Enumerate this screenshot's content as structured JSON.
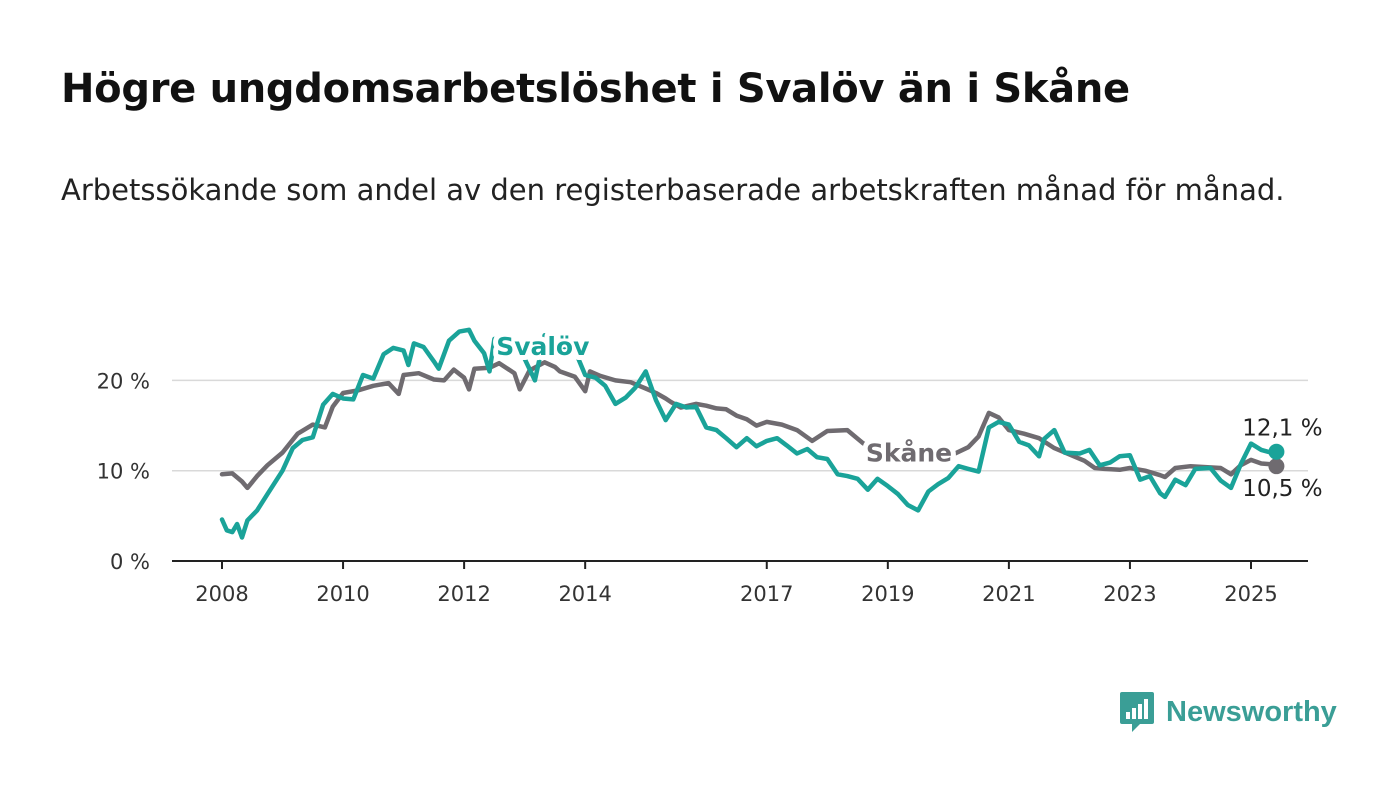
{
  "header": {
    "title": "Högre ungdomsarbetslöshet i Svalöv än i Skåne",
    "subtitle": "Arbetssökande som andel av den registerbaserade arbetskraften månad för månad."
  },
  "brand": {
    "name": "Newsworthy",
    "logo_icon": "bar-chart-speech-bubble-icon",
    "color": "#3a9e96"
  },
  "chart_data": {
    "type": "line",
    "x_tick_labels": [
      "2008",
      "2010",
      "2012",
      "2014",
      "2017",
      "2019",
      "2021",
      "2023",
      "2025"
    ],
    "y_tick_labels": [
      "0 %",
      "10 %",
      "20 %"
    ],
    "y_ticks": [
      0,
      10,
      20
    ],
    "ylim": [
      0,
      28
    ],
    "xlim": [
      2007.2,
      2026
    ],
    "grid": true,
    "series": [
      {
        "name": "Skåne",
        "color": "#6f6b70",
        "end_label": "10,5 %",
        "points": [
          [
            2008.0,
            9.6
          ],
          [
            2008.17,
            9.7
          ],
          [
            2008.33,
            8.8
          ],
          [
            2008.42,
            8.1
          ],
          [
            2008.58,
            9.4
          ],
          [
            2008.75,
            10.6
          ],
          [
            2009.0,
            12.0
          ],
          [
            2009.25,
            14.1
          ],
          [
            2009.5,
            15.1
          ],
          [
            2009.7,
            14.8
          ],
          [
            2009.83,
            17.1
          ],
          [
            2010.0,
            18.6
          ],
          [
            2010.25,
            18.9
          ],
          [
            2010.5,
            19.4
          ],
          [
            2010.75,
            19.7
          ],
          [
            2010.92,
            18.5
          ],
          [
            2011.0,
            20.6
          ],
          [
            2011.25,
            20.8
          ],
          [
            2011.5,
            20.1
          ],
          [
            2011.67,
            20.0
          ],
          [
            2011.83,
            21.2
          ],
          [
            2012.0,
            20.3
          ],
          [
            2012.08,
            19.0
          ],
          [
            2012.17,
            21.3
          ],
          [
            2012.42,
            21.4
          ],
          [
            2012.58,
            21.9
          ],
          [
            2012.83,
            20.8
          ],
          [
            2012.92,
            19.0
          ],
          [
            2013.08,
            21.1
          ],
          [
            2013.33,
            22.0
          ],
          [
            2013.5,
            21.5
          ],
          [
            2013.58,
            21.0
          ],
          [
            2013.83,
            20.4
          ],
          [
            2014.0,
            18.8
          ],
          [
            2014.08,
            21.0
          ],
          [
            2014.25,
            20.5
          ],
          [
            2014.5,
            20.0
          ],
          [
            2014.75,
            19.8
          ],
          [
            2015.0,
            19.1
          ],
          [
            2015.17,
            18.6
          ],
          [
            2015.33,
            18.0
          ],
          [
            2015.42,
            17.6
          ],
          [
            2015.58,
            17.0
          ],
          [
            2015.83,
            17.4
          ],
          [
            2016.0,
            17.2
          ],
          [
            2016.17,
            16.9
          ],
          [
            2016.33,
            16.8
          ],
          [
            2016.5,
            16.1
          ],
          [
            2016.67,
            15.7
          ],
          [
            2016.83,
            15.0
          ],
          [
            2017.0,
            15.4
          ],
          [
            2017.25,
            15.1
          ],
          [
            2017.5,
            14.5
          ],
          [
            2017.75,
            13.3
          ],
          [
            2018.0,
            14.4
          ],
          [
            2018.33,
            14.5
          ],
          [
            2018.58,
            13.1
          ],
          [
            2018.83,
            12.0
          ],
          [
            2018.92,
            11.3
          ],
          [
            2019.17,
            12.8
          ],
          [
            2019.5,
            12.7
          ],
          [
            2019.83,
            12.5
          ],
          [
            2020.08,
            11.8
          ],
          [
            2020.33,
            12.6
          ],
          [
            2020.5,
            13.8
          ],
          [
            2020.67,
            16.4
          ],
          [
            2020.83,
            15.9
          ],
          [
            2021.0,
            14.5
          ],
          [
            2021.25,
            14.1
          ],
          [
            2021.5,
            13.6
          ],
          [
            2021.75,
            12.5
          ],
          [
            2022.0,
            11.8
          ],
          [
            2022.25,
            11.1
          ],
          [
            2022.42,
            10.3
          ],
          [
            2022.58,
            10.2
          ],
          [
            2022.83,
            10.1
          ],
          [
            2023.0,
            10.3
          ],
          [
            2023.25,
            10.0
          ],
          [
            2023.5,
            9.5
          ],
          [
            2023.58,
            9.3
          ],
          [
            2023.75,
            10.3
          ],
          [
            2024.0,
            10.5
          ],
          [
            2024.25,
            10.4
          ],
          [
            2024.5,
            10.3
          ],
          [
            2024.67,
            9.6
          ],
          [
            2024.83,
            10.6
          ],
          [
            2025.0,
            11.2
          ],
          [
            2025.17,
            10.8
          ],
          [
            2025.35,
            10.7
          ],
          [
            2025.42,
            10.5
          ]
        ]
      },
      {
        "name": "Svalöv",
        "color": "#1aa399",
        "end_label": "12,1 %",
        "points": [
          [
            2008.0,
            4.6
          ],
          [
            2008.08,
            3.4
          ],
          [
            2008.17,
            3.2
          ],
          [
            2008.25,
            4.1
          ],
          [
            2008.33,
            2.6
          ],
          [
            2008.42,
            4.5
          ],
          [
            2008.58,
            5.6
          ],
          [
            2008.75,
            7.4
          ],
          [
            2009.0,
            10.0
          ],
          [
            2009.17,
            12.5
          ],
          [
            2009.33,
            13.4
          ],
          [
            2009.5,
            13.7
          ],
          [
            2009.67,
            17.3
          ],
          [
            2009.83,
            18.5
          ],
          [
            2010.0,
            18.0
          ],
          [
            2010.17,
            17.9
          ],
          [
            2010.33,
            20.6
          ],
          [
            2010.5,
            20.2
          ],
          [
            2010.67,
            22.9
          ],
          [
            2010.83,
            23.6
          ],
          [
            2011.0,
            23.3
          ],
          [
            2011.08,
            21.7
          ],
          [
            2011.17,
            24.1
          ],
          [
            2011.33,
            23.7
          ],
          [
            2011.5,
            22.1
          ],
          [
            2011.58,
            21.3
          ],
          [
            2011.75,
            24.4
          ],
          [
            2011.92,
            25.4
          ],
          [
            2012.08,
            25.6
          ],
          [
            2012.17,
            24.4
          ],
          [
            2012.33,
            23.0
          ],
          [
            2012.42,
            21.0
          ],
          [
            2012.5,
            24.6
          ],
          [
            2012.67,
            23.4
          ],
          [
            2012.83,
            23.4
          ],
          [
            2013.0,
            22.4
          ],
          [
            2013.17,
            20.0
          ],
          [
            2013.33,
            25.0
          ],
          [
            2013.5,
            23.0
          ],
          [
            2013.58,
            22.6
          ],
          [
            2013.75,
            24.6
          ],
          [
            2014.0,
            20.6
          ],
          [
            2014.17,
            20.3
          ],
          [
            2014.33,
            19.4
          ],
          [
            2014.5,
            17.4
          ],
          [
            2014.67,
            18.1
          ],
          [
            2014.83,
            19.2
          ],
          [
            2015.0,
            21.0
          ],
          [
            2015.17,
            17.8
          ],
          [
            2015.33,
            15.6
          ],
          [
            2015.5,
            17.4
          ],
          [
            2015.67,
            17.0
          ],
          [
            2015.83,
            17.1
          ],
          [
            2016.0,
            14.8
          ],
          [
            2016.17,
            14.5
          ],
          [
            2016.33,
            13.6
          ],
          [
            2016.5,
            12.6
          ],
          [
            2016.67,
            13.6
          ],
          [
            2016.83,
            12.7
          ],
          [
            2017.0,
            13.3
          ],
          [
            2017.17,
            13.6
          ],
          [
            2017.33,
            12.8
          ],
          [
            2017.5,
            11.9
          ],
          [
            2017.67,
            12.4
          ],
          [
            2017.83,
            11.5
          ],
          [
            2018.0,
            11.3
          ],
          [
            2018.17,
            9.6
          ],
          [
            2018.33,
            9.4
          ],
          [
            2018.5,
            9.1
          ],
          [
            2018.67,
            7.9
          ],
          [
            2018.83,
            9.1
          ],
          [
            2019.0,
            8.3
          ],
          [
            2019.17,
            7.4
          ],
          [
            2019.33,
            6.2
          ],
          [
            2019.5,
            5.6
          ],
          [
            2019.67,
            7.7
          ],
          [
            2019.83,
            8.5
          ],
          [
            2020.0,
            9.2
          ],
          [
            2020.17,
            10.5
          ],
          [
            2020.33,
            10.2
          ],
          [
            2020.5,
            9.9
          ],
          [
            2020.67,
            14.8
          ],
          [
            2020.83,
            15.4
          ],
          [
            2021.0,
            15.1
          ],
          [
            2021.17,
            13.2
          ],
          [
            2021.33,
            12.8
          ],
          [
            2021.5,
            11.6
          ],
          [
            2021.58,
            13.5
          ],
          [
            2021.75,
            14.5
          ],
          [
            2021.92,
            12.0
          ],
          [
            2022.17,
            11.9
          ],
          [
            2022.33,
            12.3
          ],
          [
            2022.5,
            10.6
          ],
          [
            2022.67,
            10.9
          ],
          [
            2022.83,
            11.6
          ],
          [
            2023.0,
            11.7
          ],
          [
            2023.17,
            9.0
          ],
          [
            2023.33,
            9.4
          ],
          [
            2023.5,
            7.5
          ],
          [
            2023.58,
            7.1
          ],
          [
            2023.75,
            9.0
          ],
          [
            2023.92,
            8.4
          ],
          [
            2024.08,
            10.2
          ],
          [
            2024.33,
            10.3
          ],
          [
            2024.5,
            8.9
          ],
          [
            2024.67,
            8.1
          ],
          [
            2024.83,
            10.7
          ],
          [
            2025.0,
            13.0
          ],
          [
            2025.17,
            12.3
          ],
          [
            2025.33,
            12.0
          ],
          [
            2025.42,
            12.1
          ]
        ]
      }
    ],
    "series_labels": [
      {
        "series": "Svalöv",
        "text": "Svalöv",
        "at": [
          2013.3,
          22.8
        ]
      },
      {
        "series": "Skåne",
        "text": "Skåne",
        "at": [
          2019.35,
          11.0
        ]
      }
    ]
  }
}
